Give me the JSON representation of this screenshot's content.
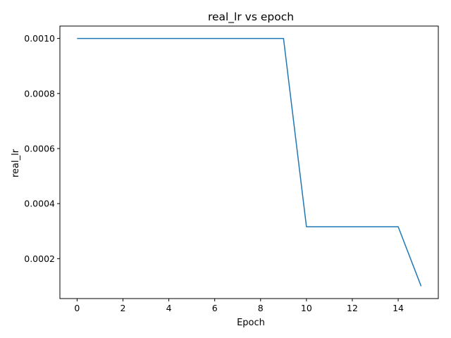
{
  "chart_data": {
    "type": "line",
    "title": "real_lr vs epoch",
    "xlabel": "Epoch",
    "ylabel": "real_lr",
    "x": [
      0,
      1,
      2,
      3,
      4,
      5,
      6,
      7,
      8,
      9,
      10,
      11,
      12,
      13,
      14,
      15
    ],
    "series": [
      {
        "values": [
          0.001,
          0.001,
          0.001,
          0.001,
          0.001,
          0.001,
          0.001,
          0.001,
          0.001,
          0.001,
          0.000316,
          0.000316,
          0.000316,
          0.000316,
          0.000316,
          0.0001
        ],
        "color": "#1f77b4"
      }
    ],
    "xlim": [
      -0.75,
      15.75
    ],
    "ylim": [
      5.5e-05,
      0.001045
    ],
    "xticks": [
      0,
      2,
      4,
      6,
      8,
      10,
      12,
      14
    ],
    "xtick_labels": [
      "0",
      "2",
      "4",
      "6",
      "8",
      "10",
      "12",
      "14"
    ],
    "yticks": [
      0.0002,
      0.0004,
      0.0006,
      0.0008,
      0.001
    ],
    "ytick_labels": [
      "0.0002",
      "0.0004",
      "0.0006",
      "0.0008",
      "0.0010"
    ],
    "grid": false,
    "legend": false
  }
}
